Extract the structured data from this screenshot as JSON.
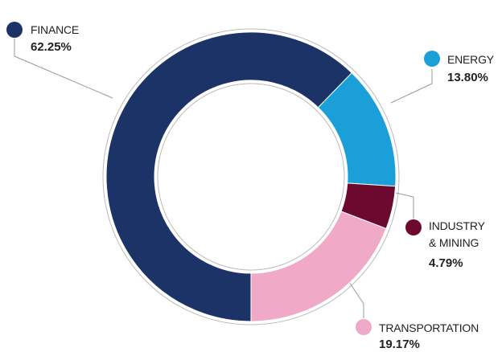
{
  "chart_data": {
    "type": "pie",
    "categories": [
      "FINANCE",
      "ENERGY",
      "INDUSTRY & MINING",
      "TRANSPORTATION"
    ],
    "values": [
      62.25,
      13.8,
      4.79,
      19.17
    ],
    "value_labels": [
      "62.25%",
      "13.80%",
      "4.79%",
      "19.17%"
    ],
    "colors": [
      "#1b3366",
      "#1b9fd8",
      "#6b0a2e",
      "#f0a9c7"
    ]
  }
}
